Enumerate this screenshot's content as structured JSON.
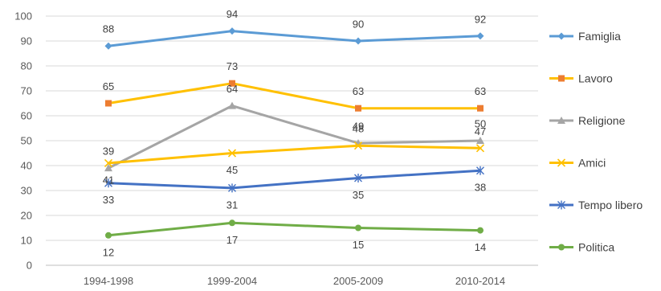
{
  "chart_data": {
    "type": "line",
    "categories": [
      "1994-1998",
      "1999-2004",
      "2005-2009",
      "2010-2014"
    ],
    "ylim": [
      0,
      100
    ],
    "yticks": [
      0,
      10,
      20,
      30,
      40,
      50,
      60,
      70,
      80,
      90,
      100
    ],
    "grid": true,
    "legend_position": "right",
    "series": [
      {
        "name": "Famiglia",
        "color": "#5B9BD5",
        "marker": "diamond",
        "values": [
          88,
          94,
          90,
          92
        ],
        "labels": [
          "88",
          "94",
          "90",
          "92"
        ]
      },
      {
        "name": "Lavoro",
        "color": "#FFC000",
        "marker": "square",
        "values": [
          65,
          73,
          63,
          63
        ],
        "labels": [
          "65",
          "73",
          "63",
          "63"
        ]
      },
      {
        "name": "Religione",
        "color": "#A5A5A5",
        "marker": "triangle",
        "values": [
          39,
          64,
          49,
          50
        ],
        "labels": [
          "39",
          "64",
          "49",
          "50"
        ]
      },
      {
        "name": "Amici",
        "color": "#FFC000",
        "marker": "x",
        "values": [
          41,
          45,
          48,
          47
        ],
        "labels": [
          "41",
          "45",
          "48",
          "47"
        ]
      },
      {
        "name": "Tempo libero",
        "color": "#4472C4",
        "marker": "star",
        "values": [
          33,
          31,
          35,
          38
        ],
        "labels": [
          "33",
          "31",
          "35",
          "38"
        ]
      },
      {
        "name": "Politica",
        "color": "#70AD47",
        "marker": "circle",
        "values": [
          12,
          17,
          15,
          14
        ],
        "labels": [
          "12",
          "17",
          "15",
          "14"
        ]
      }
    ]
  }
}
